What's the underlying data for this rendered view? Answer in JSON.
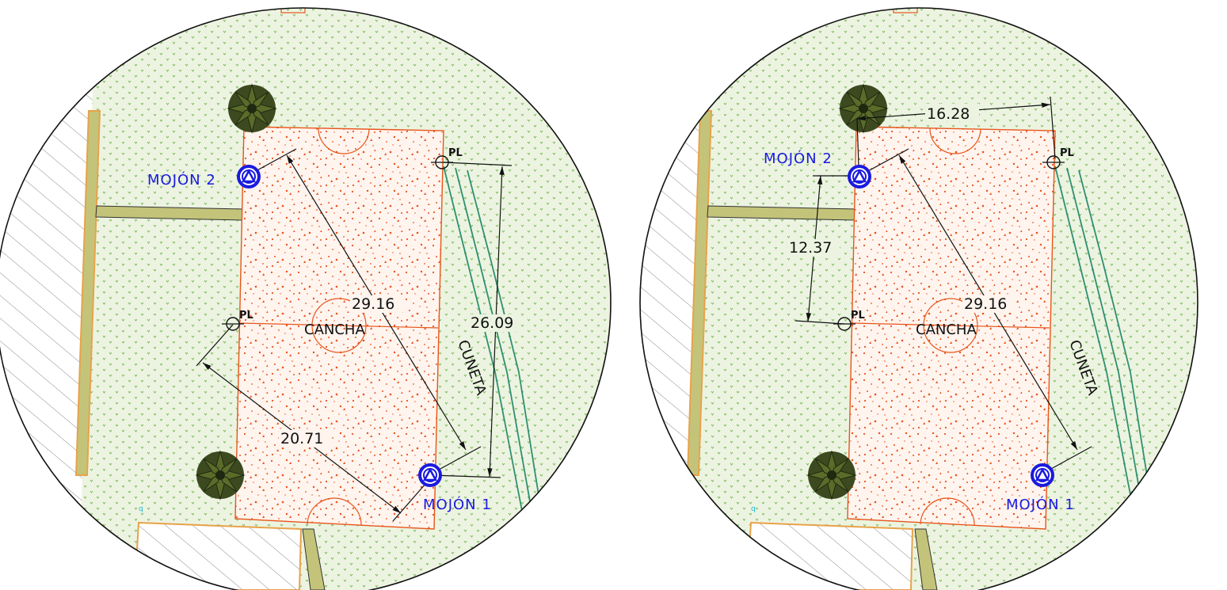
{
  "colors": {
    "grass_bg": "#ecf4e1",
    "grass_dot": "#7cb85b",
    "court_fill": "#fff4ee",
    "court_line": "#e8551a",
    "court_speckle": "#e8531c",
    "mojon_blue": "#1a1adf",
    "wall_olive": "#c3c47a",
    "wall_orange": "#e8a24a",
    "cuneta_green": "#2f8f70",
    "tree_dark": "#2f3b1a",
    "hatch_gray": "#8a8a8a"
  },
  "icons": [
    "tree-icon",
    "mojon-marker-icon",
    "pl-marker-icon"
  ],
  "panels": [
    {
      "id": "left",
      "court_label": "CANCHA",
      "ditch_label": "CUNETA",
      "mojon_1_label": "MOJÓN  1",
      "mojon_2_label": "MOJÓN  2",
      "pl_label_top": "PL",
      "pl_label_mid": "PL",
      "dimensions": [
        "29.16",
        "26.09",
        "20.71"
      ]
    },
    {
      "id": "right",
      "court_label": "CANCHA",
      "ditch_label": "CUNETA",
      "mojon_1_label": "MOJÓN  1",
      "mojon_2_label": "MOJÓN  2",
      "pl_label_top": "PL",
      "pl_label_mid": "PL",
      "dimensions": [
        "29.16",
        "16.28",
        "12.37"
      ]
    }
  ]
}
